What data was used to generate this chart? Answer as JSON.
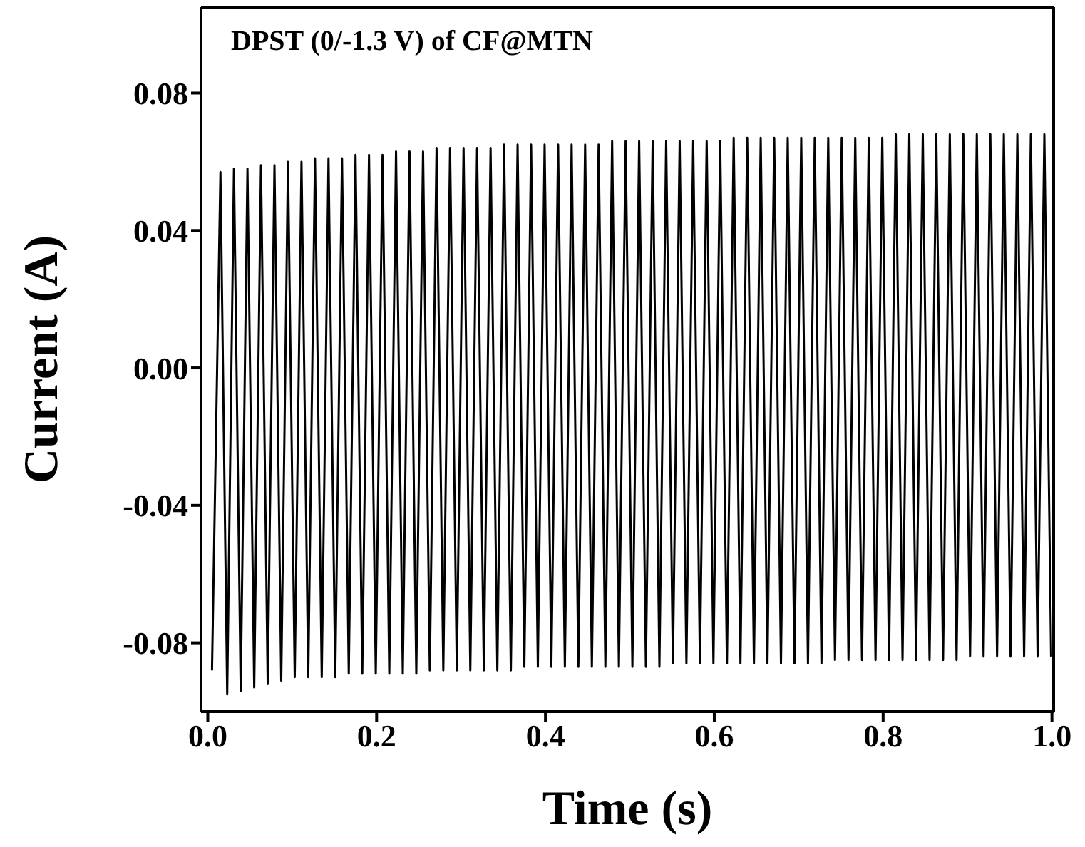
{
  "chart_data": {
    "type": "line",
    "title": "DPST (0/-1.3 V) of CF@MTN",
    "xlabel": "Time (s)",
    "ylabel": "Current (A)",
    "xlim": [
      -0.008,
      1.002
    ],
    "ylim": [
      -0.1,
      0.105
    ],
    "xticks": [
      {
        "value": 0,
        "label": "0.0"
      },
      {
        "value": 0.2,
        "label": "0.2"
      },
      {
        "value": 0.4,
        "label": "0.4"
      },
      {
        "value": 0.6,
        "label": "0.6"
      },
      {
        "value": 0.8,
        "label": "0.8"
      },
      {
        "value": 1,
        "label": "1.0"
      }
    ],
    "yticks": [
      {
        "value": -0.08,
        "label": "-0.08"
      },
      {
        "value": -0.04,
        "label": "-0.04"
      },
      {
        "value": 0,
        "label": "0.00"
      },
      {
        "value": 0.04,
        "label": "0.04"
      },
      {
        "value": 0.08,
        "label": "0.08"
      }
    ],
    "grid": false,
    "legend": false,
    "marker": "none",
    "line_style": "solid",
    "x": [
      0.005,
      0.015,
      0.023,
      0.031,
      0.039,
      0.047,
      0.055,
      0.063,
      0.071,
      0.079,
      0.087,
      0.095,
      0.103,
      0.111,
      0.119,
      0.127,
      0.135,
      0.143,
      0.151,
      0.159,
      0.167,
      0.175,
      0.183,
      0.191,
      0.199,
      0.207,
      0.215,
      0.223,
      0.231,
      0.239,
      0.247,
      0.255,
      0.263,
      0.271,
      0.279,
      0.287,
      0.295,
      0.303,
      0.311,
      0.319,
      0.327,
      0.335,
      0.343,
      0.351,
      0.359,
      0.367,
      0.375,
      0.383,
      0.391,
      0.399,
      0.407,
      0.415,
      0.423,
      0.431,
      0.439,
      0.447,
      0.455,
      0.463,
      0.471,
      0.479,
      0.487,
      0.495,
      0.503,
      0.511,
      0.519,
      0.527,
      0.535,
      0.543,
      0.551,
      0.559,
      0.567,
      0.575,
      0.583,
      0.591,
      0.599,
      0.607,
      0.615,
      0.623,
      0.631,
      0.639,
      0.647,
      0.655,
      0.663,
      0.671,
      0.679,
      0.687,
      0.695,
      0.703,
      0.711,
      0.719,
      0.727,
      0.735,
      0.743,
      0.751,
      0.759,
      0.767,
      0.775,
      0.783,
      0.791,
      0.799,
      0.807,
      0.815,
      0.823,
      0.831,
      0.839,
      0.847,
      0.855,
      0.863,
      0.871,
      0.879,
      0.887,
      0.895,
      0.903,
      0.911,
      0.919,
      0.927,
      0.935,
      0.943,
      0.951,
      0.959,
      0.967,
      0.975,
      0.983,
      0.991,
      0.999
    ],
    "series": [
      {
        "color": "#000000",
        "values": [
          -0.088,
          0.057,
          -0.095,
          0.058,
          -0.094,
          0.058,
          -0.093,
          0.059,
          -0.092,
          0.059,
          -0.091,
          0.06,
          -0.09,
          0.06,
          -0.09,
          0.061,
          -0.09,
          0.061,
          -0.09,
          0.061,
          -0.089,
          0.062,
          -0.089,
          0.062,
          -0.089,
          0.062,
          -0.089,
          0.063,
          -0.089,
          0.063,
          -0.089,
          0.063,
          -0.088,
          0.064,
          -0.088,
          0.064,
          -0.088,
          0.064,
          -0.088,
          0.064,
          -0.088,
          0.064,
          -0.088,
          0.065,
          -0.088,
          0.065,
          -0.087,
          0.065,
          -0.087,
          0.065,
          -0.087,
          0.065,
          -0.087,
          0.065,
          -0.087,
          0.065,
          -0.087,
          0.065,
          -0.087,
          0.066,
          -0.087,
          0.066,
          -0.087,
          0.066,
          -0.087,
          0.066,
          -0.087,
          0.066,
          -0.086,
          0.066,
          -0.086,
          0.066,
          -0.086,
          0.066,
          -0.086,
          0.066,
          -0.086,
          0.067,
          -0.086,
          0.067,
          -0.086,
          0.067,
          -0.086,
          0.067,
          -0.086,
          0.067,
          -0.086,
          0.067,
          -0.086,
          0.067,
          -0.086,
          0.067,
          -0.085,
          0.067,
          -0.085,
          0.067,
          -0.085,
          0.067,
          -0.085,
          0.067,
          -0.085,
          0.068,
          -0.085,
          0.068,
          -0.085,
          0.068,
          -0.085,
          0.068,
          -0.085,
          0.068,
          -0.085,
          0.068,
          -0.084,
          0.068,
          -0.084,
          0.068,
          -0.084,
          0.068,
          -0.084,
          0.068,
          -0.084,
          0.068,
          -0.084,
          0.068,
          -0.084
        ]
      }
    ]
  }
}
